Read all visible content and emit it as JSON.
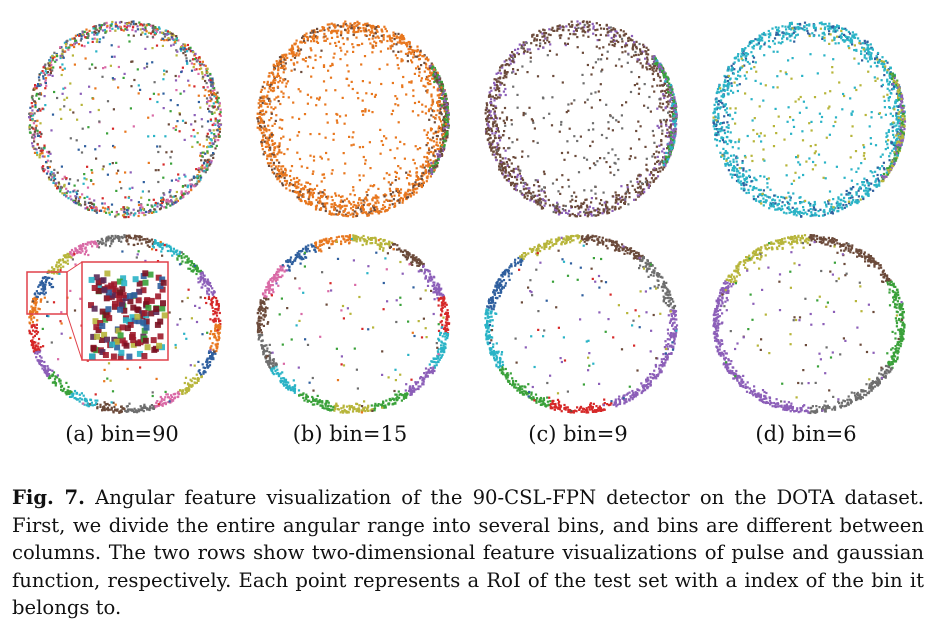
{
  "figure": {
    "columns": [
      {
        "label": "(a) bin=90"
      },
      {
        "label": "(b) bin=15"
      },
      {
        "label": "(c) bin=9"
      },
      {
        "label": "(d) bin=6"
      }
    ]
  },
  "caption": {
    "label": "Fig. 7.",
    "text": "Angular feature visualization of the 90-CSL-FPN detector on the DOTA dataset. First, we divide the entire angular range into several bins, and bins are different between columns. The two rows show two-dimensional feature visualizations of pulse and gaussian function, respectively. Each point represents a RoI of the test set with a index of the bin it belongs to."
  },
  "colors": {
    "orange": "#e8771e",
    "brown": "#6b4a3a",
    "cyan": "#2ab3c6",
    "red": "#d62828",
    "green": "#3aa13a",
    "purple": "#8c5fb8",
    "olive": "#b7b53a",
    "gray": "#6e6e6e",
    "blue": "#2f5f9e",
    "pink": "#d96aa6",
    "zoom_box": "#e0404a"
  }
}
